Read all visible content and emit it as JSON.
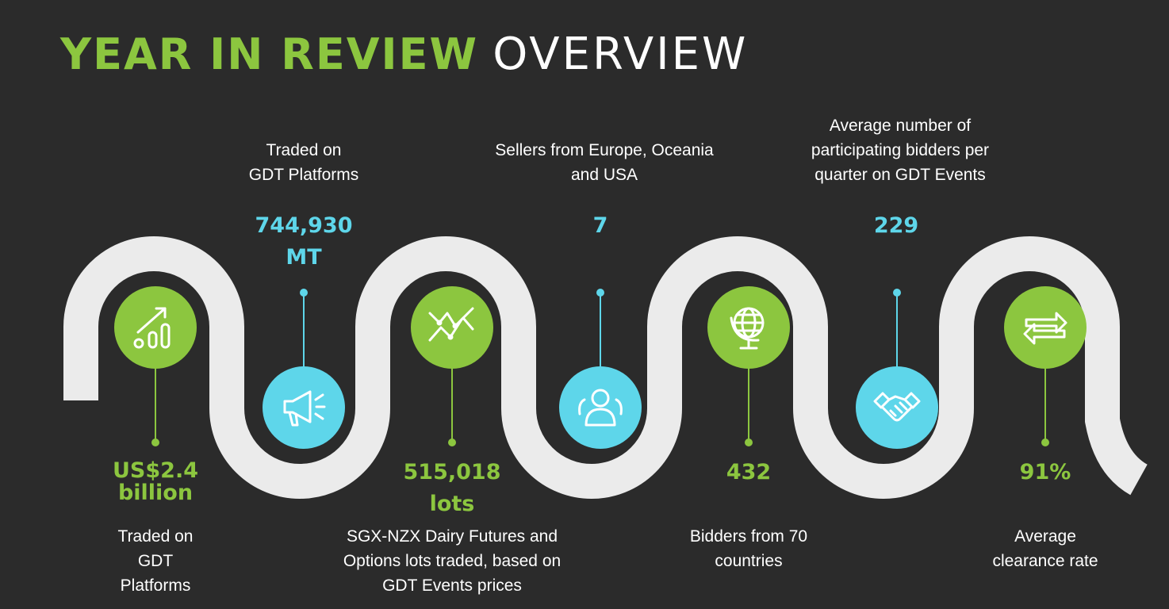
{
  "title": {
    "bold": "YEAR IN REVIEW",
    "light": "OVERVIEW"
  },
  "colors": {
    "background": "#2b2b2b",
    "green": "#8cc63f",
    "blue": "#5ed6ea",
    "road": "#ebebeb"
  },
  "stats": [
    {
      "icon": "growth-chart-icon",
      "value_lines": [
        "US$2.4",
        "billion"
      ],
      "desc_lines": [
        "Traded on",
        "GDT",
        "Platforms"
      ]
    },
    {
      "icon": "megaphone-icon",
      "value_lines": [
        "744,930",
        "MT"
      ],
      "desc_lines": [
        "Traded on",
        "GDT Platforms"
      ]
    },
    {
      "icon": "trend-lines-icon",
      "value_lines": [
        "515,018",
        "lots"
      ],
      "desc_lines": [
        "SGX-NZX Dairy Futures and",
        "Options lots traded, based on",
        "GDT Events prices"
      ]
    },
    {
      "icon": "people-icon",
      "value_lines": [
        "7"
      ],
      "desc_lines": [
        "Sellers from Europe, Oceania",
        "and USA"
      ]
    },
    {
      "icon": "globe-icon",
      "value_lines": [
        "432"
      ],
      "desc_lines": [
        "Bidders from 70",
        "countries"
      ]
    },
    {
      "icon": "handshake-icon",
      "value_lines": [
        "229"
      ],
      "desc_lines": [
        "Average number of",
        "participating bidders per",
        "quarter on GDT Events"
      ]
    },
    {
      "icon": "exchange-arrows-icon",
      "value_lines": [
        "91%"
      ],
      "desc_lines": [
        "Average",
        "clearance rate"
      ]
    }
  ]
}
